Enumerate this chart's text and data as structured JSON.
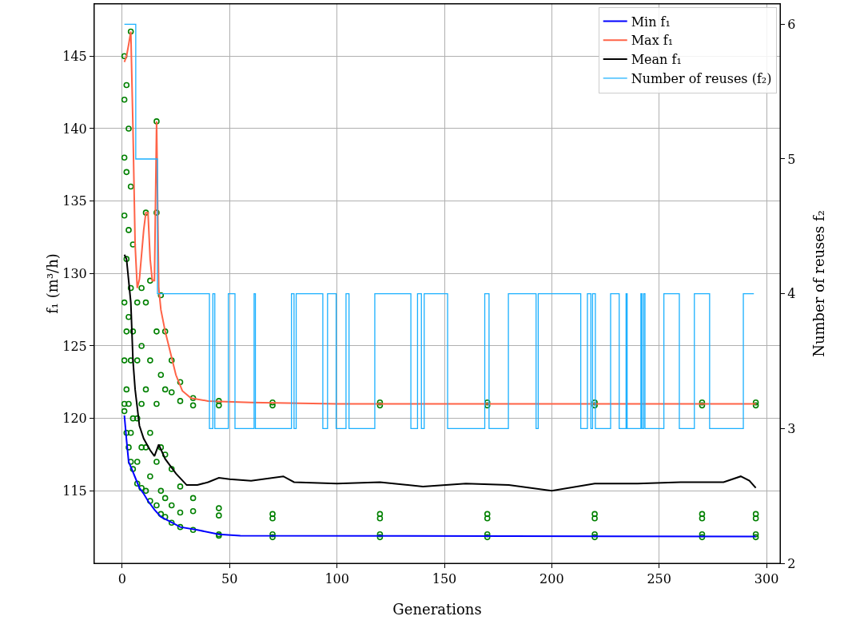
{
  "chart_data": {
    "type": "line",
    "xlabel": "Generations",
    "ylabel": "f₁ (m³/h)",
    "y2label": "Number of reuses f₂",
    "xlim": [
      -13,
      306.3
    ],
    "xticks": [
      0,
      50,
      100,
      150,
      200,
      250,
      300
    ],
    "ylim": [
      110,
      148.6
    ],
    "yticks": [
      115,
      120,
      125,
      130,
      135,
      140,
      145
    ],
    "y2lim": [
      2,
      6.15
    ],
    "y2ticks": [
      2,
      3,
      4,
      5,
      6
    ],
    "grid": true,
    "legend": "top right",
    "series": [
      {
        "type": "scatter",
        "marker": "circle",
        "color": "#008000",
        "x": [
          1,
          1,
          1,
          1,
          1,
          1,
          1,
          1,
          2,
          2,
          2,
          2,
          2,
          2,
          3,
          3,
          3,
          3,
          3,
          4,
          4,
          4,
          4,
          4,
          4,
          5,
          5,
          5,
          5,
          7,
          7,
          7,
          7,
          7,
          9,
          9,
          9,
          9,
          9,
          11,
          11,
          11,
          11,
          11,
          13,
          13,
          13,
          13,
          13,
          16,
          16,
          16,
          16,
          16,
          16,
          18,
          18,
          18,
          18,
          18,
          20,
          20,
          20,
          20,
          20,
          23,
          23,
          23,
          23,
          23,
          27,
          27,
          27,
          27,
          27,
          33,
          33,
          33,
          33,
          33,
          45,
          45,
          45,
          45,
          45,
          45,
          70,
          70,
          70,
          70,
          70,
          70,
          120,
          120,
          120,
          120,
          120,
          120,
          170,
          170,
          170,
          170,
          170,
          170,
          220,
          220,
          220,
          220,
          220,
          220,
          270,
          270,
          270,
          270,
          270,
          270,
          295,
          295,
          295,
          295,
          295,
          295
        ],
        "values": [
          145,
          142,
          138,
          134,
          128,
          124,
          121,
          120.5,
          143,
          137,
          131,
          126,
          122,
          119,
          140,
          133,
          127,
          121,
          118,
          146.7,
          136,
          129,
          124,
          119,
          117,
          132,
          126,
          120,
          116.5,
          128,
          124,
          120,
          117,
          115.5,
          129,
          125,
          121,
          118,
          115.2,
          134.2,
          128,
          122,
          118,
          115,
          129.5,
          124,
          119,
          116,
          114.3,
          140.5,
          134.2,
          126,
          121,
          117,
          114,
          128.5,
          123,
          118,
          115,
          113.4,
          126,
          122,
          117.5,
          114.5,
          113.2,
          124,
          121.8,
          116.5,
          114,
          112.8,
          122.5,
          121.2,
          115.3,
          113.5,
          112.5,
          121.4,
          120.9,
          114.5,
          113.6,
          112.3,
          121.2,
          120.9,
          113.8,
          113.3,
          112,
          111.9,
          121.1,
          120.9,
          113.4,
          113.1,
          112,
          111.8,
          121.1,
          120.9,
          113.4,
          113.1,
          112,
          111.8,
          121.1,
          120.9,
          113.4,
          113.1,
          112,
          111.8,
          121.1,
          120.9,
          113.4,
          113.1,
          112,
          111.8,
          121.1,
          120.9,
          113.4,
          113.1,
          112,
          111.8,
          121.1,
          120.9,
          113.4,
          113.1,
          112,
          111.8
        ]
      },
      {
        "name": "Min f₁",
        "color": "#0000ff",
        "x": [
          1,
          2,
          3,
          5,
          8,
          10,
          12,
          15,
          18,
          22,
          27,
          35,
          45,
          55,
          295
        ],
        "values": [
          120.2,
          118.5,
          117,
          116.3,
          115.2,
          114.8,
          114.3,
          113.7,
          113.2,
          112.9,
          112.5,
          112.3,
          112,
          111.9,
          111.85
        ]
      },
      {
        "name": "Max f₁",
        "color": "#ff6347",
        "x": [
          1,
          2,
          3,
          4,
          5,
          6,
          7,
          8,
          10,
          11,
          12,
          13,
          14,
          15,
          16,
          17,
          18,
          20,
          22,
          25,
          28,
          32,
          40,
          60,
          100,
          295
        ],
        "values": [
          144.6,
          145,
          145.8,
          146.7,
          140,
          132,
          129,
          129.6,
          133,
          134.2,
          134.2,
          131,
          129.5,
          129.5,
          140.5,
          129,
          127.5,
          126,
          124.8,
          123,
          121.9,
          121.4,
          121.2,
          121.1,
          121,
          121
        ]
      },
      {
        "name": "Mean f₁",
        "color": "#000000",
        "x": [
          1,
          2,
          4,
          5,
          6,
          8,
          10,
          13,
          15,
          17,
          20,
          25,
          30,
          35,
          40,
          45,
          50,
          60,
          75,
          80,
          100,
          120,
          140,
          160,
          180,
          200,
          220,
          240,
          260,
          280,
          288,
          292,
          295
        ],
        "values": [
          131.3,
          131,
          128,
          124,
          122,
          119.5,
          118.6,
          117.8,
          117.4,
          118.2,
          117.2,
          116.2,
          115.4,
          115.4,
          115.6,
          115.9,
          115.8,
          115.7,
          116,
          115.6,
          115.5,
          115.6,
          115.3,
          115.5,
          115.4,
          115,
          115.5,
          115.5,
          115.6,
          115.6,
          116,
          115.7,
          115.2
        ]
      },
      {
        "name": "Number of reuses (f₂)",
        "type": "step",
        "axis": "y2",
        "color": "#1ab0ff",
        "x": [
          1,
          6.3,
          16.4,
          40.6,
          42.2,
          43.1,
          49.4,
          52.5,
          61.4,
          62,
          78.8,
          80,
          81,
          93.4,
          95.6,
          99.6,
          104.2,
          105.6,
          117.6,
          134.4,
          137.5,
          139.3,
          140.6,
          151.5,
          168.8,
          170.8,
          179.8,
          192.7,
          193.7,
          213.5,
          216.6,
          218.2,
          219,
          220.3,
          227.4,
          231.4,
          234.6,
          235.1,
          241.5,
          242,
          242.8,
          243.4,
          252.2,
          259.4,
          266.4,
          273.5,
          289.2,
          294.1
        ],
        "values": [
          6,
          5,
          4,
          3,
          4,
          3,
          4,
          3,
          4,
          3,
          4,
          3,
          4,
          3,
          4,
          3,
          4,
          3,
          4,
          3,
          4,
          3,
          4,
          3,
          4,
          3,
          4,
          3,
          4,
          3,
          4,
          3,
          4,
          3,
          4,
          3,
          4,
          3,
          4,
          3,
          4,
          3,
          4,
          3,
          4,
          3,
          4,
          4
        ]
      }
    ]
  }
}
